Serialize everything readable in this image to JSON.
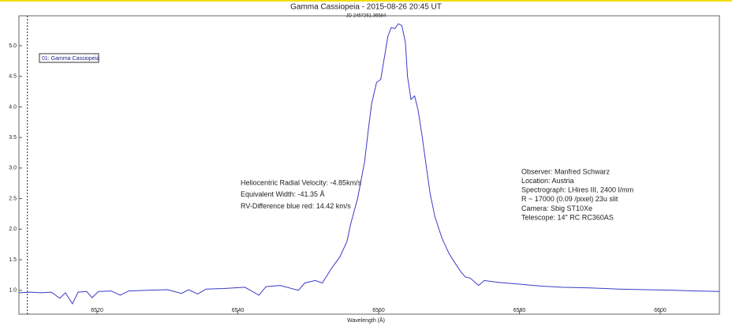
{
  "chart_data": {
    "type": "line",
    "title": "Gamma Cassiopeia - 2015-08-26 20:45 UT",
    "subtitle": "JD 2457261.36584",
    "xlabel": "Wavelength (Å)",
    "legend": "01: Gamma Cassiopeia",
    "annotations": [
      [
        "Heliocentric Radial Velocity: -4.85km/s",
        "Equivalent Width: -41.35 Å",
        "RV-Difference blue red: 14.42 km/s"
      ],
      [
        "Observer: Manfred Schwarz",
        "Location: Austria",
        "Spectrograph: LHires III, 2400 l/mm",
        "R ~ 17000 (0.09 /pixel) 23u slit",
        "Camera: Sbig ST10Xe",
        "Telescope: 14\" RC RC360AS"
      ]
    ],
    "cursor_x": 6510.1,
    "xlim": [
      6508.9,
      6608.4
    ],
    "ylim": [
      0.61,
      5.49
    ],
    "xticks": [
      6520,
      6540,
      6560,
      6580,
      6600
    ],
    "yticks": [
      {
        "value": 1.0,
        "label": "1.0"
      },
      {
        "value": 1.5,
        "label": "1.5"
      },
      {
        "value": 2.0,
        "label": "2.0"
      },
      {
        "value": 2.5,
        "label": "2.5"
      },
      {
        "value": 3.0,
        "label": "3.0"
      },
      {
        "value": 3.5,
        "label": "3.5"
      },
      {
        "value": 4.0,
        "label": "4.0"
      },
      {
        "value": 4.5,
        "label": "4.5"
      },
      {
        "value": 5.0,
        "label": "5.0"
      }
    ],
    "series": [
      {
        "name": "01: Gamma Cassiopeia",
        "color": "#3a3ac8",
        "x": [
          6508.9,
          6510.5,
          6512,
          6513.5,
          6514.7,
          6515.5,
          6516.5,
          6517.3,
          6518.5,
          6519.3,
          6520.2,
          6522,
          6523.3,
          6524.5,
          6527,
          6530,
          6532,
          6533,
          6534.3,
          6535.5,
          6538,
          6541,
          6543,
          6544,
          6546,
          6548.6,
          6549.5,
          6551,
          6552,
          6553.3,
          6554.5,
          6555.5,
          6556,
          6557,
          6558,
          6558.5,
          6559,
          6559.7,
          6560.3,
          6560.8,
          6561.3,
          6561.8,
          6562.3,
          6562.8,
          6563.3,
          6563.8,
          6564.1,
          6564.6,
          6565.1,
          6565.6,
          6566.2,
          6566.8,
          6567.3,
          6568,
          6569,
          6570,
          6571,
          6571.7,
          6572.3,
          6573,
          6574.2,
          6575,
          6577,
          6580,
          6583,
          6586,
          6590,
          6594,
          6598,
          6602,
          6605,
          6608.4
        ],
        "values": [
          0.96,
          0.97,
          0.96,
          0.97,
          0.87,
          0.96,
          0.78,
          0.97,
          0.98,
          0.88,
          0.98,
          0.99,
          0.92,
          0.99,
          1.0,
          1.01,
          0.95,
          1.01,
          0.94,
          1.02,
          1.03,
          1.05,
          0.92,
          1.06,
          1.08,
          1.0,
          1.12,
          1.16,
          1.12,
          1.36,
          1.55,
          1.8,
          2.07,
          2.5,
          3.1,
          3.6,
          4.05,
          4.4,
          4.45,
          4.8,
          5.15,
          5.3,
          5.28,
          5.36,
          5.33,
          5.05,
          4.5,
          4.12,
          4.18,
          3.95,
          3.5,
          3.0,
          2.59,
          2.2,
          1.85,
          1.6,
          1.42,
          1.3,
          1.22,
          1.2,
          1.08,
          1.16,
          1.13,
          1.1,
          1.07,
          1.05,
          1.04,
          1.02,
          1.01,
          1.0,
          0.99,
          0.98
        ]
      }
    ]
  }
}
